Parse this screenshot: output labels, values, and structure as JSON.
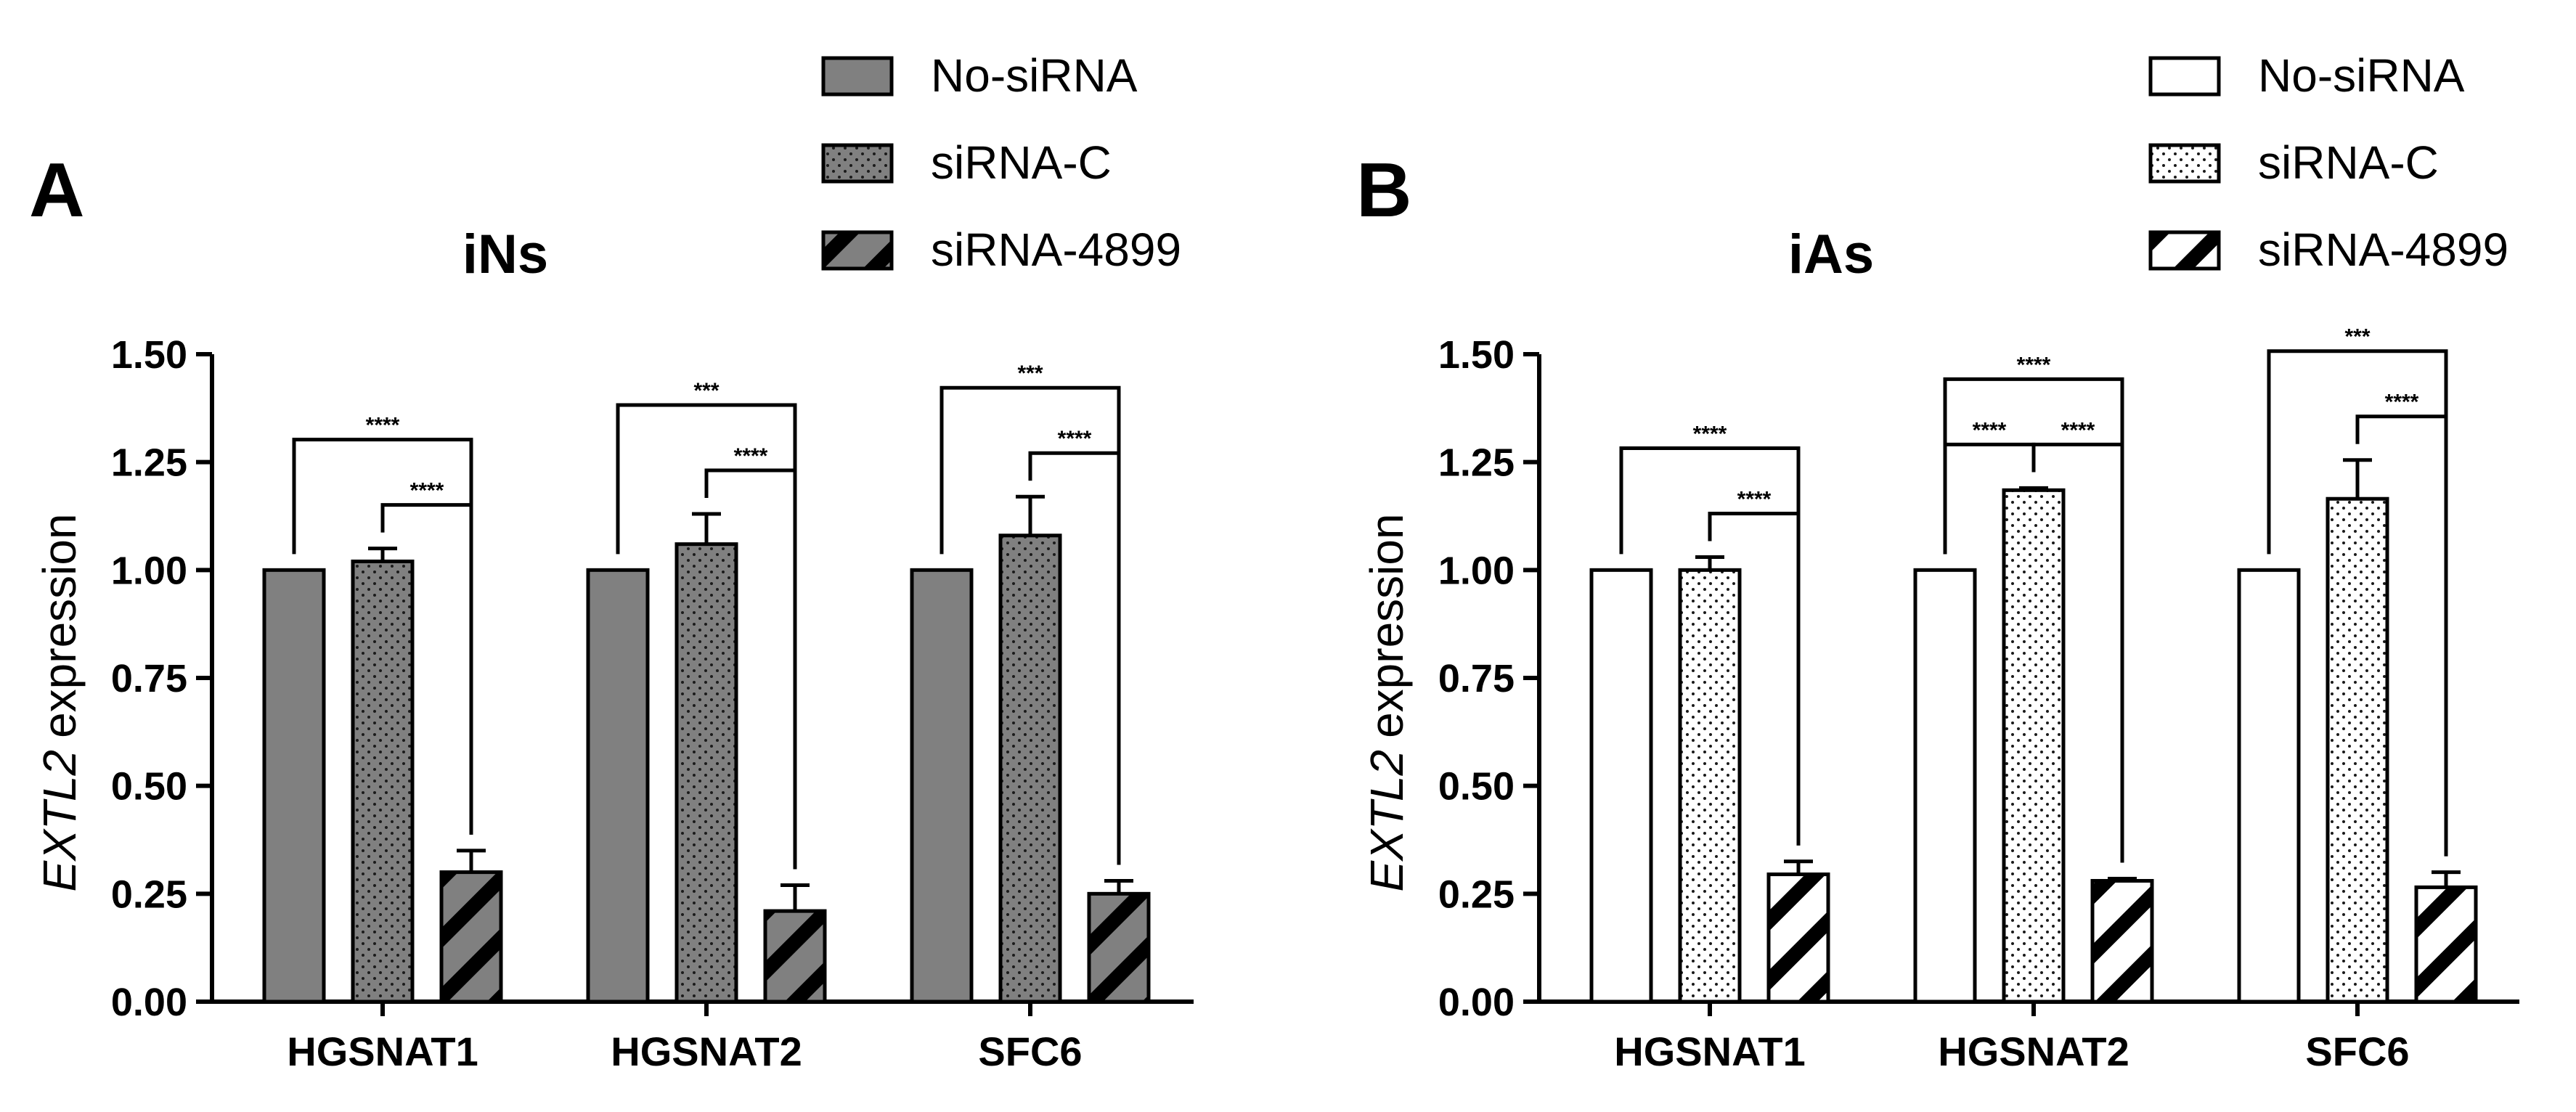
{
  "chart_data": [
    {
      "type": "bar",
      "panel_label": "A",
      "title": "iNs",
      "ylabel_gene": "EXTL2",
      "ylabel_rest": "expression",
      "ylim": [
        0,
        1.5
      ],
      "ytick_labels": [
        "0.00",
        "0.25",
        "0.50",
        "0.75",
        "1.00",
        "1.25",
        "1.50"
      ],
      "categories": [
        "HGSNAT1",
        "HGSNAT2",
        "SFC6"
      ],
      "fill_color": "#808080",
      "series": [
        {
          "name": "No-siRNA",
          "pattern": "solid",
          "values": [
            1.0,
            1.0,
            1.0
          ],
          "errors": [
            0,
            0,
            0
          ]
        },
        {
          "name": "siRNA-C",
          "pattern": "dots",
          "values": [
            1.02,
            1.06,
            1.08
          ],
          "errors": [
            0.03,
            0.07,
            0.09
          ]
        },
        {
          "name": "siRNA-4899",
          "pattern": "stripes",
          "values": [
            0.3,
            0.21,
            0.25
          ],
          "errors": [
            0.05,
            0.06,
            0.03
          ]
        }
      ],
      "significance": [
        {
          "category": 0,
          "from": 0,
          "to": 2,
          "label": "****"
        },
        {
          "category": 0,
          "from": 1,
          "to": 2,
          "label": "****"
        },
        {
          "category": 1,
          "from": 0,
          "to": 2,
          "label": "***"
        },
        {
          "category": 1,
          "from": 1,
          "to": 2,
          "label": "****"
        },
        {
          "category": 2,
          "from": 0,
          "to": 2,
          "label": "***"
        },
        {
          "category": 2,
          "from": 1,
          "to": 2,
          "label": "****"
        }
      ]
    },
    {
      "type": "bar",
      "panel_label": "B",
      "title": "iAs",
      "ylabel_gene": "EXTL2",
      "ylabel_rest": "expression",
      "ylim": [
        0,
        1.5
      ],
      "ytick_labels": [
        "0.00",
        "0.25",
        "0.50",
        "0.75",
        "1.00",
        "1.25",
        "1.50"
      ],
      "categories": [
        "HGSNAT1",
        "HGSNAT2",
        "SFC6"
      ],
      "fill_color": "#ffffff",
      "series": [
        {
          "name": "No-siRNA",
          "pattern": "solid",
          "values": [
            1.0,
            1.0,
            1.0
          ],
          "errors": [
            0,
            0,
            0
          ]
        },
        {
          "name": "siRNA-C",
          "pattern": "dots",
          "values": [
            1.0,
            1.185,
            1.165
          ],
          "errors": [
            0.03,
            0.005,
            0.09
          ]
        },
        {
          "name": "siRNA-4899",
          "pattern": "stripes",
          "values": [
            0.295,
            0.28,
            0.265
          ],
          "errors": [
            0.03,
            0.005,
            0.035
          ]
        }
      ],
      "significance": [
        {
          "category": 0,
          "from": 0,
          "to": 2,
          "label": "****"
        },
        {
          "category": 0,
          "from": 1,
          "to": 2,
          "label": "****"
        },
        {
          "category": 1,
          "from": 0,
          "to": 1,
          "label": "****"
        },
        {
          "category": 1,
          "from": 1,
          "to": 2,
          "label": "****"
        },
        {
          "category": 1,
          "from": 0,
          "to": 2,
          "label": "****"
        },
        {
          "category": 2,
          "from": 0,
          "to": 2,
          "label": "***"
        },
        {
          "category": 2,
          "from": 1,
          "to": 2,
          "label": "****"
        }
      ]
    }
  ]
}
